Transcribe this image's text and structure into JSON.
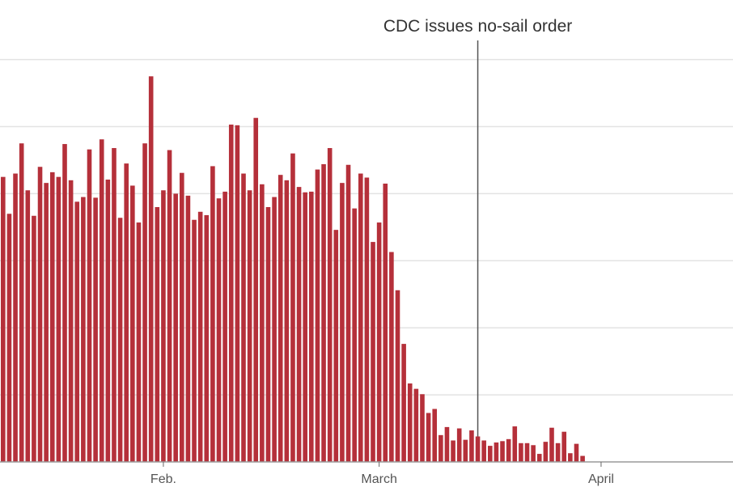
{
  "chart_data": {
    "type": "bar",
    "title": "",
    "xlabel": "",
    "ylabel": "",
    "bar_color": "#b5303a",
    "gridlines": true,
    "ylim": [
      0,
      600
    ],
    "gridline_values": [
      100,
      200,
      300,
      400,
      500,
      600
    ],
    "values": [
      425,
      370,
      430,
      475,
      405,
      367,
      440,
      416,
      432,
      425,
      474,
      420,
      388,
      395,
      466,
      394,
      481,
      421,
      468,
      364,
      445,
      412,
      357,
      475,
      575,
      380,
      405,
      465,
      400,
      431,
      397,
      361,
      373,
      368,
      441,
      393,
      403,
      503,
      502,
      430,
      405,
      513,
      414,
      380,
      395,
      428,
      420,
      460,
      410,
      402,
      403,
      436,
      444,
      468,
      346,
      416,
      443,
      378,
      430,
      424,
      328,
      357,
      415,
      313,
      256,
      176,
      117,
      109,
      101,
      73,
      79,
      40,
      52,
      32,
      50,
      33,
      47,
      38,
      32,
      24,
      29,
      31,
      34,
      53,
      28,
      28,
      25,
      12,
      30,
      51,
      28,
      45,
      13,
      27,
      9
    ],
    "x_ticks": [
      {
        "label": "Feb.",
        "index": 26
      },
      {
        "label": "March",
        "index": 61
      },
      {
        "label": "April",
        "index": 97
      }
    ],
    "annotations": [
      {
        "text": "CDC issues no-sail order",
        "index": 77
      }
    ]
  }
}
